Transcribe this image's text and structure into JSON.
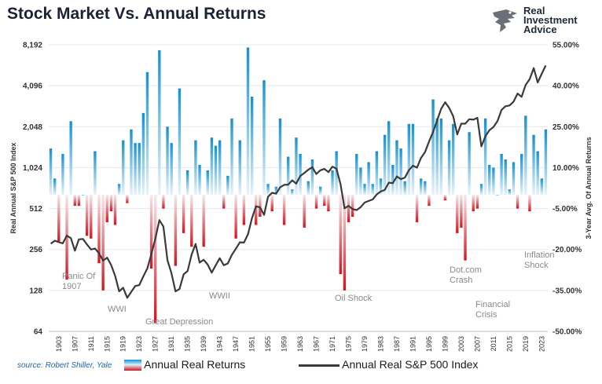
{
  "title": "Stock Market Vs. Annual Returns",
  "logo": {
    "line1": "Real",
    "line2": "Investment",
    "line3": "Advice",
    "icon": "eagle-icon"
  },
  "source": "source: Robert Shiller, Yale",
  "colors": {
    "positive": "#1ea0de",
    "negative": "#e0202a",
    "line": "#3a3a3a",
    "grid": "#e8e8e8"
  },
  "chart_data": {
    "type": "bar+line",
    "title": "Stock Market Vs. Annual Returns",
    "y_left_label": "Real Annual S&P 500 Index",
    "y_right_label": "3-Year Avg. Of Annual Returns",
    "y_left_scale": "log2",
    "y_left_ticks": [
      "8,192",
      "4,096",
      "2,048",
      "1,024",
      "512",
      "256",
      "128",
      "64"
    ],
    "y_left_range": [
      64,
      8192
    ],
    "y_right_ticks": [
      "55.00%",
      "40.00%",
      "25.00%",
      "10.00%",
      "-5.00%",
      "-20.00%",
      "-35.00%",
      "-50.00%"
    ],
    "y_right_range": [
      -50,
      55
    ],
    "x_tick_labels": [
      "1903",
      "1907",
      "1911",
      "1915",
      "1919",
      "1923",
      "1927",
      "1931",
      "1935",
      "1939",
      "1943",
      "1947",
      "1951",
      "1955",
      "1959",
      "1963",
      "1967",
      "1971",
      "1975",
      "1979",
      "1983",
      "1987",
      "1991",
      "1995",
      "1999",
      "2003",
      "2007",
      "2011",
      "2015",
      "2019",
      "2023"
    ],
    "start_year": 1901,
    "bar_baseline": 0,
    "series": [
      {
        "name": "Annual Real Returns",
        "axis": "right",
        "values": [
          17,
          6,
          -17,
          15,
          -31,
          27,
          -4,
          -4,
          0,
          -15,
          -16,
          16,
          -25,
          -35,
          -10,
          -6,
          -11,
          4,
          20,
          -3,
          24,
          19,
          19,
          30,
          45,
          -27,
          -47,
          53,
          -5,
          25,
          19,
          -26,
          39,
          -14,
          9,
          -19,
          20,
          11,
          -19,
          9,
          21,
          18,
          20,
          -5,
          7,
          28,
          -16,
          20,
          -11,
          54,
          36,
          -11,
          -8,
          42,
          4,
          -6,
          3,
          28,
          -11,
          14,
          2,
          21,
          15,
          -12,
          5,
          13,
          -5,
          3,
          -4,
          -6,
          9,
          16,
          -29,
          -35,
          -10,
          -8,
          15,
          10,
          4,
          12,
          4,
          16,
          6,
          22,
          27,
          11,
          20,
          17,
          5,
          26,
          26,
          -10,
          6,
          5,
          -4,
          35,
          28,
          28,
          -2,
          20,
          26,
          -14,
          -12,
          -24,
          23,
          -6,
          -5,
          4,
          28,
          11,
          10,
          0,
          15,
          13,
          2,
          12,
          -5,
          15,
          29,
          -6,
          22,
          16,
          6,
          24
        ]
      },
      {
        "name": "Annual Real S&P 500 Index",
        "axis": "left",
        "values": [
          282,
          297,
          290,
          284,
          324,
          310,
          251,
          304,
          306,
          279,
          256,
          260,
          240,
          212,
          223,
          197,
          164,
          126,
          134,
          113,
          125,
          138,
          140,
          162,
          186,
          237,
          308,
          421,
          378,
          213,
          171,
          126,
          131,
          168,
          178,
          235,
          281,
          205,
          215,
          198,
          173,
          196,
          221,
          196,
          202,
          234,
          259,
          289,
          288,
          331,
          434,
          532,
          522,
          460,
          626,
          669,
          659,
          735,
          765,
          768,
          826,
          781,
          890,
          933,
          988,
          1031,
          919,
          979,
          1001,
          949,
          1041,
          1007,
          774,
          514,
          536,
          507,
          499,
          524,
          567,
          582,
          597,
          650,
          684,
          701,
          794,
          787,
          882,
          842,
          864,
          980,
          1058,
          1023,
          1207,
          1330,
          1590,
          1875,
          2278,
          2764,
          3097,
          2818,
          2440,
          1795,
          2153,
          2153,
          2323,
          2304,
          2380,
          1467,
          1739,
          1926,
          2037,
          2247,
          2715,
          2894,
          2930,
          3128,
          3590,
          3392,
          4146,
          4575,
          5520,
          4325,
          5008,
          5770
        ]
      }
    ],
    "annotations": [
      "Panic Of 1907",
      "WWI",
      "Great Depression",
      "WWII",
      "Oil Shock",
      "Dot.com Crash",
      "Financial Crisis",
      "Inflation Shock"
    ]
  },
  "annotation_lines": {
    "panic": [
      "Panic Of",
      "1907"
    ],
    "wwi": [
      "WWI"
    ],
    "depression": [
      "Great Depression"
    ],
    "wwii": [
      "WWII"
    ],
    "oil": [
      "Oil Shock"
    ],
    "dotcom": [
      "Dot.com",
      "Crash"
    ],
    "financial": [
      "Financial",
      "Crisis"
    ],
    "inflation": [
      "Inflation",
      "Shock"
    ]
  },
  "legend": {
    "bars": "Annual Real Returns",
    "line": "Annual Real S&P 500 Index"
  }
}
